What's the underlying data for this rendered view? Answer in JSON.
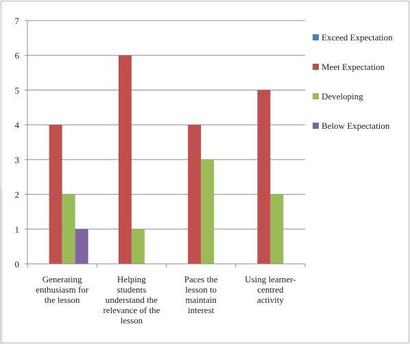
{
  "chart_data": {
    "type": "bar",
    "categories": [
      [
        "Generating",
        "enthusiasm for",
        "the lesson"
      ],
      [
        "Helping",
        "students",
        "understand the",
        "relevance of the",
        "lesson"
      ],
      [
        "Paces the",
        "lesson to",
        "maintain",
        "interest"
      ],
      [
        "Using learner-",
        "centred",
        "activity"
      ]
    ],
    "series": [
      {
        "name": "Exceed Expectation",
        "values": [
          0,
          0,
          0,
          0
        ],
        "color": "#4a7ebf"
      },
      {
        "name": "Meet Expectation",
        "values": [
          4,
          6,
          4,
          5
        ],
        "color": "#c0504d"
      },
      {
        "name": "Developing",
        "values": [
          2,
          1,
          3,
          2
        ],
        "color": "#9bbb59"
      },
      {
        "name": "Below Expectation",
        "values": [
          1,
          0,
          0,
          0
        ],
        "color": "#8064a2"
      }
    ],
    "ylim": [
      0,
      7
    ],
    "yticks": [
      0,
      1,
      2,
      3,
      4,
      5,
      6,
      7
    ],
    "grid": true,
    "legend_position": "right"
  }
}
